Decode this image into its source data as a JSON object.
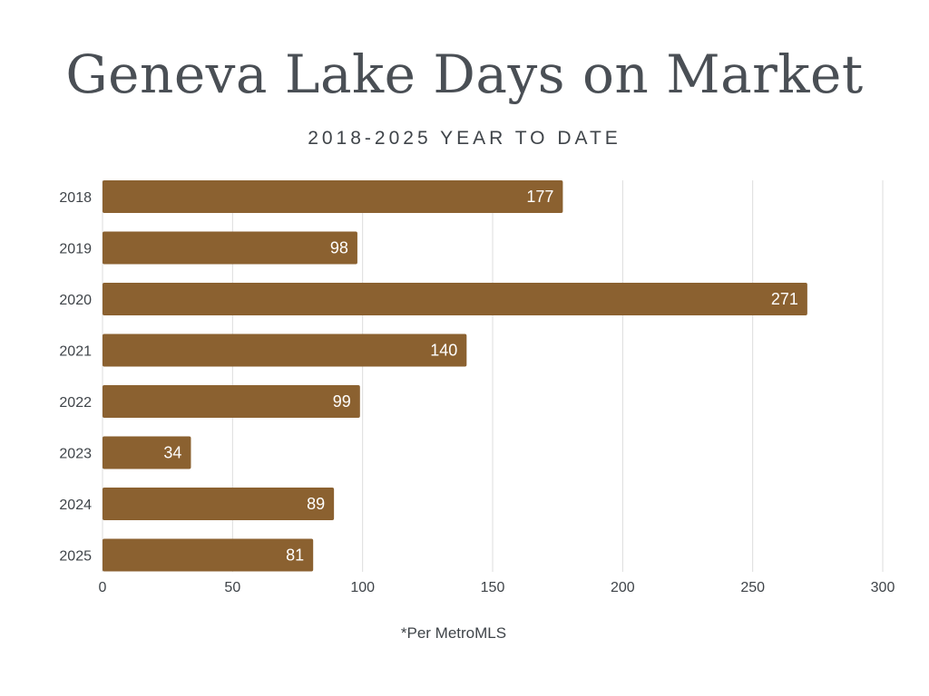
{
  "chart_data": {
    "type": "bar",
    "orientation": "horizontal",
    "title": "Geneva Lake Days on Market",
    "subtitle": "2018-2025 YEAR TO DATE",
    "categories": [
      "2018",
      "2019",
      "2020",
      "2021",
      "2022",
      "2023",
      "2024",
      "2025"
    ],
    "values": [
      177,
      98,
      271,
      140,
      99,
      34,
      89,
      81
    ],
    "data_labels": [
      "177",
      "98",
      "271",
      "140",
      "99",
      "34",
      "89",
      "81"
    ],
    "xlim": [
      0,
      300
    ],
    "x_ticks": [
      "0",
      "50",
      "100",
      "150",
      "200",
      "250",
      "300"
    ],
    "xlabel": "",
    "ylabel": "",
    "grid": "vertical",
    "legend": "none",
    "bar_color": "#8b6130",
    "label_color": "#ffffff",
    "footnote": "*Per MetroMLS"
  }
}
